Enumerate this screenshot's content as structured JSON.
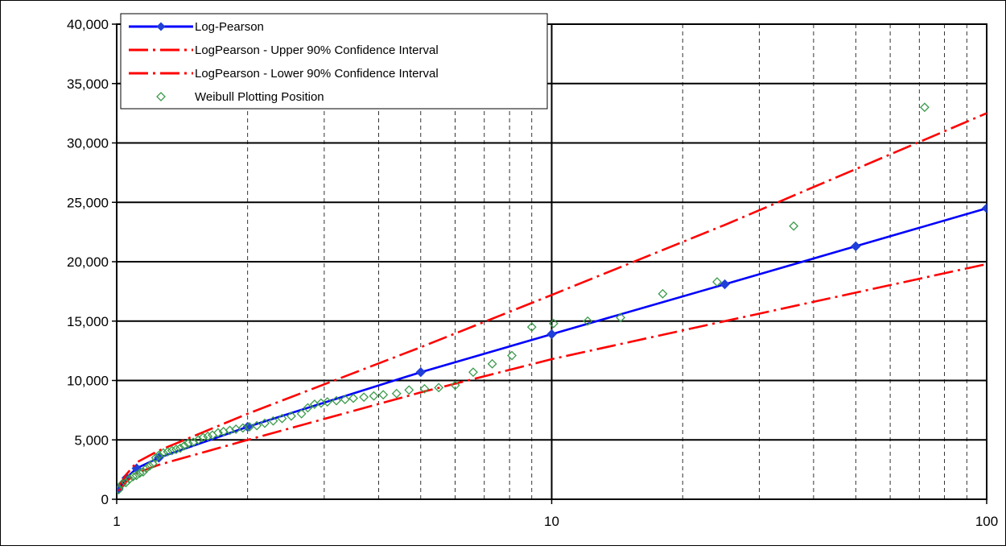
{
  "chart_data": {
    "type": "scatter",
    "title": "",
    "xlabel": "",
    "ylabel": "",
    "x_scale": "log",
    "xlim": [
      1,
      100
    ],
    "ylim": [
      0,
      40000
    ],
    "grid": true,
    "legend_position": "top-left",
    "x_ticks": [
      {
        "value": 1,
        "label": "1"
      },
      {
        "value": 10,
        "label": "10"
      },
      {
        "value": 100,
        "label": "100"
      }
    ],
    "y_ticks": [
      {
        "value": 0,
        "label": "0"
      },
      {
        "value": 5000,
        "label": "5,000"
      },
      {
        "value": 10000,
        "label": "10,000"
      },
      {
        "value": 15000,
        "label": "15,000"
      },
      {
        "value": 20000,
        "label": "20,000"
      },
      {
        "value": 25000,
        "label": "25,000"
      },
      {
        "value": 30000,
        "label": "30,000"
      },
      {
        "value": 35000,
        "label": "35,000"
      },
      {
        "value": 40000,
        "label": "40,000"
      }
    ],
    "series": [
      {
        "name": "Log-Pearson",
        "style": "line-markers",
        "color": "#0000ff",
        "marker_color": "#1f3fd8",
        "points": [
          [
            1.0101,
            900
          ],
          [
            1.053,
            1800
          ],
          [
            1.111,
            2600
          ],
          [
            1.25,
            3500
          ],
          [
            2,
            6100
          ],
          [
            5,
            10700
          ],
          [
            10,
            13900
          ],
          [
            25,
            18100
          ],
          [
            50,
            21300
          ],
          [
            100,
            24500
          ]
        ]
      },
      {
        "name": "LogPearson - Upper 90% Confidence Interval",
        "style": "dash-dot",
        "color": "#ff0000",
        "points": [
          [
            1.0101,
            1100
          ],
          [
            1.053,
            2100
          ],
          [
            1.111,
            3100
          ],
          [
            1.25,
            4100
          ],
          [
            2,
            7200
          ],
          [
            5,
            12800
          ],
          [
            10,
            17200
          ],
          [
            25,
            23100
          ],
          [
            50,
            27800
          ],
          [
            100,
            32500
          ]
        ]
      },
      {
        "name": "LogPearson - Lower 90% Confidence Interval",
        "style": "dash-dot",
        "color": "#ff0000",
        "points": [
          [
            1.0101,
            700
          ],
          [
            1.053,
            1500
          ],
          [
            1.111,
            2200
          ],
          [
            1.25,
            2900
          ],
          [
            2,
            5000
          ],
          [
            5,
            9000
          ],
          [
            10,
            11800
          ],
          [
            25,
            15000
          ],
          [
            50,
            17400
          ],
          [
            100,
            19800
          ]
        ]
      },
      {
        "name": "Weibull Plotting Position",
        "style": "markers",
        "color": "#3a9a4a",
        "points": [
          [
            1.01,
            800
          ],
          [
            1.03,
            1300
          ],
          [
            1.05,
            1400
          ],
          [
            1.07,
            1700
          ],
          [
            1.09,
            1900
          ],
          [
            1.11,
            2000
          ],
          [
            1.13,
            2200
          ],
          [
            1.15,
            2300
          ],
          [
            1.17,
            2600
          ],
          [
            1.19,
            2800
          ],
          [
            1.21,
            3000
          ],
          [
            1.23,
            3500
          ],
          [
            1.25,
            3700
          ],
          [
            1.28,
            3900
          ],
          [
            1.31,
            4000
          ],
          [
            1.34,
            4100
          ],
          [
            1.37,
            4200
          ],
          [
            1.4,
            4300
          ],
          [
            1.43,
            4500
          ],
          [
            1.46,
            4700
          ],
          [
            1.5,
            4800
          ],
          [
            1.54,
            5000
          ],
          [
            1.58,
            5200
          ],
          [
            1.62,
            5300
          ],
          [
            1.66,
            5400
          ],
          [
            1.71,
            5600
          ],
          [
            1.76,
            5700
          ],
          [
            1.82,
            5800
          ],
          [
            1.88,
            5900
          ],
          [
            1.95,
            6000
          ],
          [
            2.02,
            6100
          ],
          [
            2.1,
            6200
          ],
          [
            2.19,
            6400
          ],
          [
            2.29,
            6600
          ],
          [
            2.4,
            6800
          ],
          [
            2.52,
            7000
          ],
          [
            2.66,
            7200
          ],
          [
            2.75,
            7700
          ],
          [
            2.85,
            8000
          ],
          [
            2.95,
            8100
          ],
          [
            3.05,
            8200
          ],
          [
            3.2,
            8300
          ],
          [
            3.35,
            8400
          ],
          [
            3.5,
            8500
          ],
          [
            3.7,
            8600
          ],
          [
            3.9,
            8700
          ],
          [
            4.1,
            8800
          ],
          [
            4.4,
            8900
          ],
          [
            4.7,
            9200
          ],
          [
            5.1,
            9300
          ],
          [
            5.5,
            9400
          ],
          [
            6,
            9600
          ],
          [
            6.6,
            10700
          ],
          [
            7.3,
            11400
          ],
          [
            8.1,
            12100
          ],
          [
            9,
            14500
          ],
          [
            10.1,
            14800
          ],
          [
            12.1,
            15000
          ],
          [
            14.4,
            15300
          ],
          [
            18,
            17300
          ],
          [
            24,
            18300
          ],
          [
            36,
            23000
          ],
          [
            72,
            33000
          ]
        ]
      }
    ]
  }
}
